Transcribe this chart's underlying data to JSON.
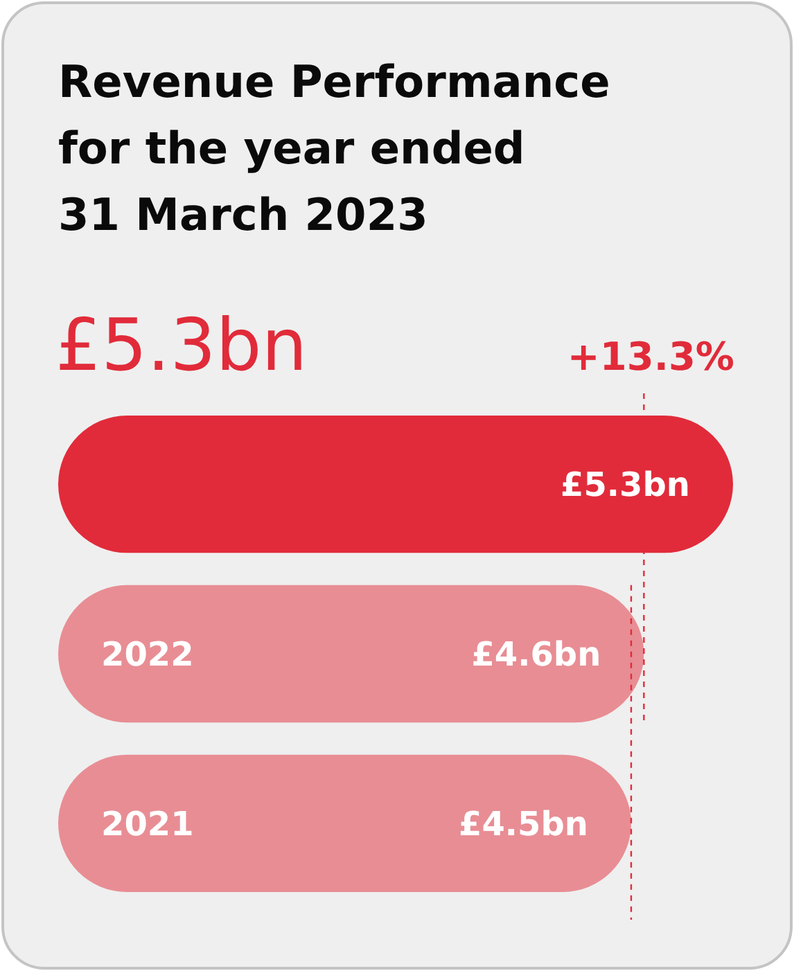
{
  "chart_data": {
    "type": "bar",
    "orientation": "horizontal",
    "title": "Revenue Performance\nfor the year ended\n31 March 2023",
    "subtitle": "£5.3bn",
    "categories": [
      null,
      "2022",
      "2021"
    ],
    "values": [
      5.3,
      4.6,
      4.5
    ],
    "colors": [
      "#e12b3a",
      "#e88d94",
      "#e88d94"
    ],
    "value_labels": [
      "£5.3bn",
      "£4.6bn",
      "£4.5bn"
    ],
    "annotations": [
      "+13.3%"
    ],
    "ref_lines": [
      {
        "axis": "x",
        "value": 4.6,
        "color": "#e12b3a",
        "line_style": "dashed"
      },
      {
        "axis": "x",
        "value": 4.5,
        "color": "#e12b3a",
        "line_style": "dashed"
      }
    ]
  }
}
